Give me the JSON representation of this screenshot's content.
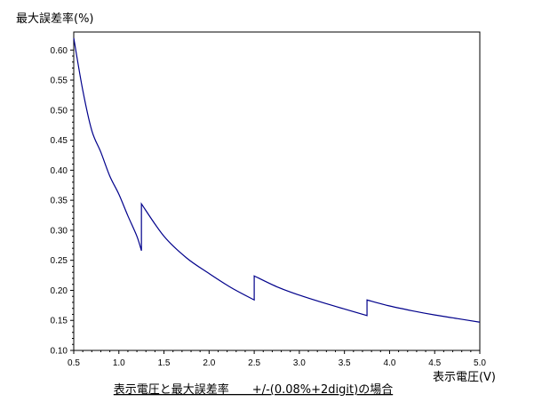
{
  "chart_data": {
    "type": "line",
    "title": "表示電圧と最大誤差率　　+/-(0.08%+2digit)の場合",
    "xlabel": "表示電圧(V)",
    "ylabel": "最大誤差率(%)",
    "xlim": [
      0.5,
      5.0
    ],
    "ylim": [
      0.1,
      0.63
    ],
    "x_ticks": [
      "0.5",
      "1.0",
      "1.5",
      "2.0",
      "2.5",
      "3.0",
      "3.5",
      "4.0",
      "4.5",
      "5.0"
    ],
    "y_ticks": [
      "0.10",
      "0.15",
      "0.20",
      "0.25",
      "0.30",
      "0.35",
      "0.40",
      "0.45",
      "0.50",
      "0.55",
      "0.60"
    ],
    "grid": false,
    "series": [
      {
        "color": "#00008b",
        "segments": [
          {
            "x": [
              0.5,
              0.6,
              0.7,
              0.8,
              0.9,
              1.0,
              1.1,
              1.2,
              1.25
            ],
            "y": [
              0.62,
              0.533,
              0.466,
              0.43,
              0.39,
              0.36,
              0.324,
              0.29,
              0.266
            ]
          },
          {
            "x": [
              1.25,
              1.5,
              1.75,
              2.0,
              2.25,
              2.5
            ],
            "y": [
              0.344,
              0.29,
              0.254,
              0.228,
              0.204,
              0.184
            ]
          },
          {
            "x": [
              2.5,
              2.75,
              3.0,
              3.25,
              3.5,
              3.75
            ],
            "y": [
              0.224,
              0.206,
              0.192,
              0.18,
              0.169,
              0.158
            ]
          },
          {
            "x": [
              3.75,
              4.0,
              4.25,
              4.5,
              4.75,
              5.0
            ],
            "y": [
              0.184,
              0.174,
              0.166,
              0.159,
              0.153,
              0.147
            ]
          }
        ]
      }
    ]
  }
}
